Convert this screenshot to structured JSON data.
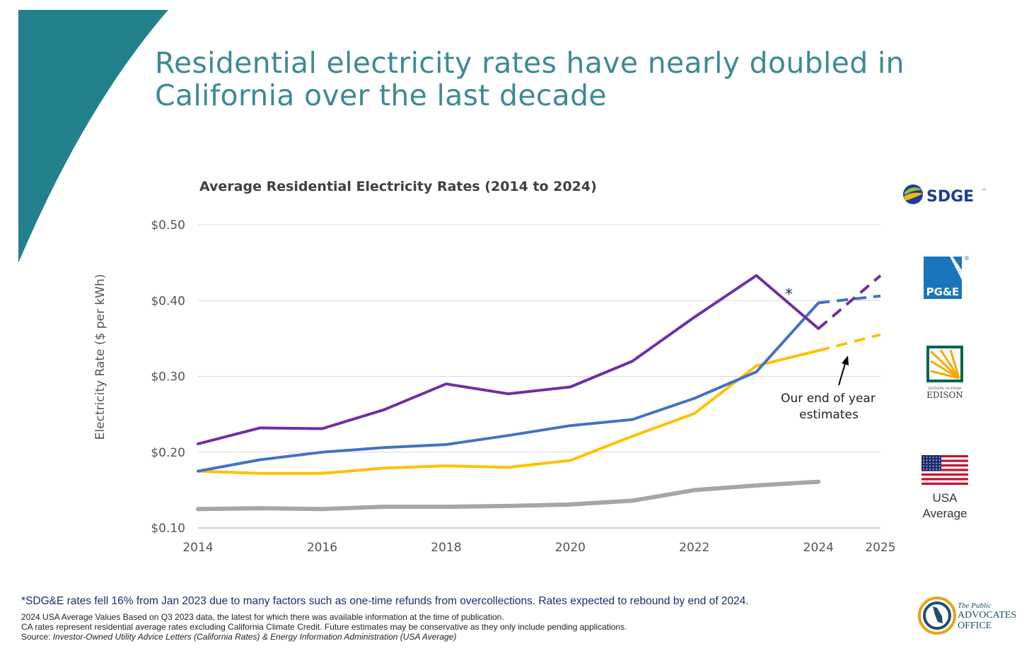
{
  "title": {
    "line1": "Residential electricity rates have nearly doubled in",
    "line2": "California over the last decade"
  },
  "chart_data": {
    "type": "line",
    "title": "Average Residential Electricity Rates (2014 to 2024)",
    "xlabel": "",
    "ylabel": "Electricity Rate ($ per kWh)",
    "xlim": [
      2014,
      2025
    ],
    "ylim": [
      0.1,
      0.5
    ],
    "x_ticks": [
      2014,
      2016,
      2018,
      2020,
      2022,
      2024,
      2025
    ],
    "y_ticks": [
      0.1,
      0.2,
      0.3,
      0.4,
      0.5
    ],
    "y_tick_labels": [
      "$0.10",
      "$0.20",
      "$0.30",
      "$0.40",
      "$0.50"
    ],
    "grid": true,
    "series": [
      {
        "name": "SDG&E",
        "color": "#7030a0",
        "x": [
          2014,
          2015,
          2016,
          2017,
          2018,
          2019,
          2020,
          2021,
          2022,
          2023,
          2024
        ],
        "values": [
          0.211,
          0.232,
          0.231,
          0.256,
          0.29,
          0.277,
          0.286,
          0.32,
          0.378,
          0.433,
          0.363
        ],
        "estimate_x": [
          2024,
          2025
        ],
        "estimate_values": [
          0.363,
          0.433
        ]
      },
      {
        "name": "PG&E",
        "color": "#4472c4",
        "x": [
          2014,
          2015,
          2016,
          2017,
          2018,
          2019,
          2020,
          2021,
          2022,
          2023,
          2024
        ],
        "values": [
          0.175,
          0.19,
          0.2,
          0.206,
          0.21,
          0.222,
          0.235,
          0.243,
          0.271,
          0.306,
          0.397
        ],
        "estimate_x": [
          2024,
          2025
        ],
        "estimate_values": [
          0.397,
          0.406
        ]
      },
      {
        "name": "SCE",
        "color": "#ffc000",
        "x": [
          2014,
          2015,
          2016,
          2017,
          2018,
          2019,
          2020,
          2021,
          2022,
          2023,
          2024
        ],
        "values": [
          0.175,
          0.172,
          0.172,
          0.179,
          0.182,
          0.18,
          0.189,
          0.221,
          0.251,
          0.314,
          0.334
        ],
        "estimate_x": [
          2024,
          2025
        ],
        "estimate_values": [
          0.334,
          0.355
        ]
      },
      {
        "name": "USA Average",
        "color": "#a6a6a6",
        "x": [
          2014,
          2015,
          2016,
          2017,
          2018,
          2019,
          2020,
          2021,
          2022,
          2023,
          2024
        ],
        "values": [
          0.125,
          0.126,
          0.125,
          0.128,
          0.128,
          0.129,
          0.131,
          0.136,
          0.15,
          0.156,
          0.161
        ]
      }
    ],
    "annotations": {
      "asterisk": "*",
      "estimate_line1": "Our end of year",
      "estimate_line2": "estimates"
    }
  },
  "legend": {
    "sdge": "SDGE",
    "sdge_tm": "™",
    "pge": "PG&E",
    "pge_reg": "®",
    "edison_small": "SOUTHERN CALIFORNIA",
    "edison": "EDISON",
    "usa_line1": "USA",
    "usa_line2": "Average"
  },
  "footnotes": {
    "main": "*SDG&E rates fell 16% from Jan 2023 due to many factors such as one-time refunds from overcollections. Rates expected to rebound by end of 2024.",
    "line1": "2024 USA Average Values Based on Q3 2023 data, the latest for which there was available information at the time of publication.",
    "line2": "CA rates represent residential average rates excluding California Climate Credit. Future estimates may be conservative as they only include pending applications.",
    "source_prefix": "Source: ",
    "source_text": "Investor-Owned Utility Advice Letters (California Rates) & Energy Information Administration (USA Average)"
  },
  "office": {
    "line1": "The Public",
    "line2": "ADVOCATES",
    "line3": "OFFICE"
  },
  "colors": {
    "title": "#3d8a94",
    "wedge": "#23818e",
    "footnote_main": "#1c2d6e"
  }
}
